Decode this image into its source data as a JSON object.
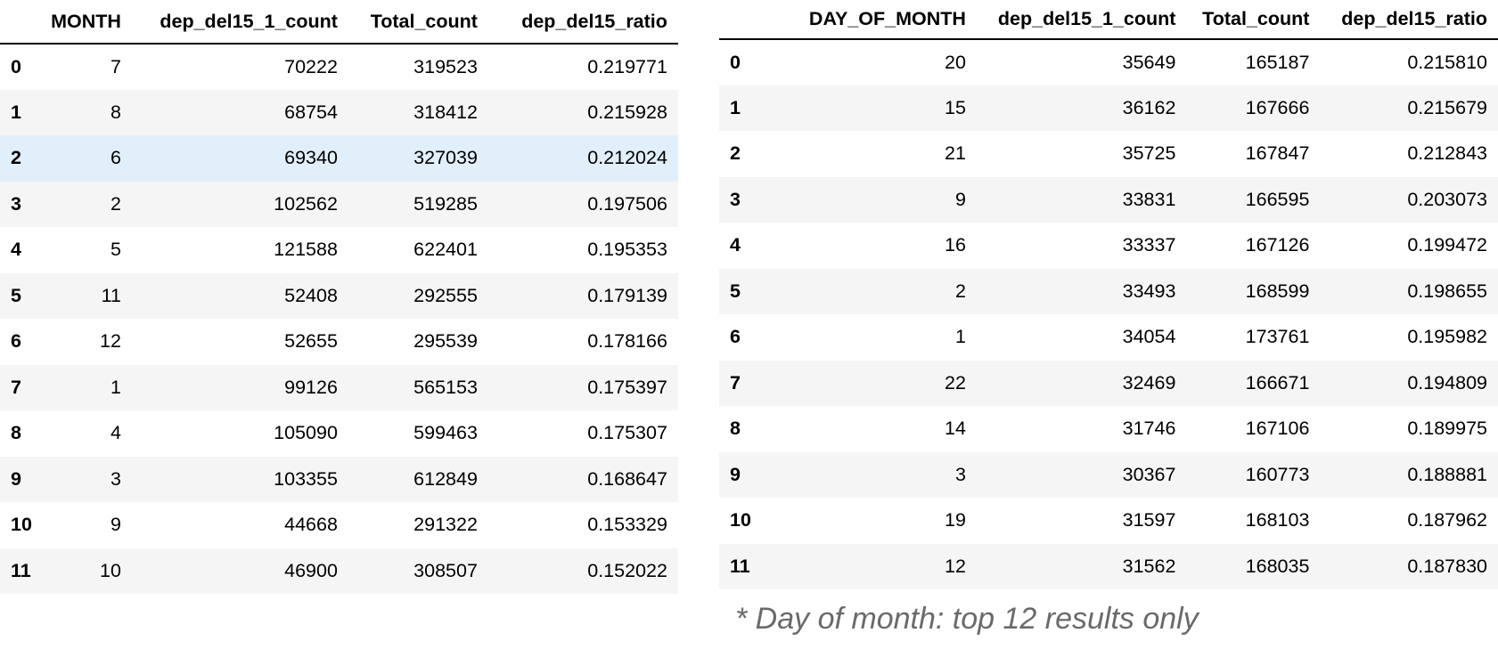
{
  "month_table": {
    "columns": [
      "",
      "MONTH",
      "dep_del15_1_count",
      "Total_count",
      "dep_del15_ratio"
    ],
    "highlighted_row": 2,
    "rows": [
      [
        "0",
        "7",
        "70222",
        "319523",
        "0.219771"
      ],
      [
        "1",
        "8",
        "68754",
        "318412",
        "0.215928"
      ],
      [
        "2",
        "6",
        "69340",
        "327039",
        "0.212024"
      ],
      [
        "3",
        "2",
        "102562",
        "519285",
        "0.197506"
      ],
      [
        "4",
        "5",
        "121588",
        "622401",
        "0.195353"
      ],
      [
        "5",
        "11",
        "52408",
        "292555",
        "0.179139"
      ],
      [
        "6",
        "12",
        "52655",
        "295539",
        "0.178166"
      ],
      [
        "7",
        "1",
        "99126",
        "565153",
        "0.175397"
      ],
      [
        "8",
        "4",
        "105090",
        "599463",
        "0.175307"
      ],
      [
        "9",
        "3",
        "103355",
        "612849",
        "0.168647"
      ],
      [
        "10",
        "9",
        "44668",
        "291322",
        "0.153329"
      ],
      [
        "11",
        "10",
        "46900",
        "308507",
        "0.152022"
      ]
    ]
  },
  "day_table": {
    "columns": [
      "",
      "DAY_OF_MONTH",
      "dep_del15_1_count",
      "Total_count",
      "dep_del15_ratio"
    ],
    "rows": [
      [
        "0",
        "20",
        "35649",
        "165187",
        "0.215810"
      ],
      [
        "1",
        "15",
        "36162",
        "167666",
        "0.215679"
      ],
      [
        "2",
        "21",
        "35725",
        "167847",
        "0.212843"
      ],
      [
        "3",
        "9",
        "33831",
        "166595",
        "0.203073"
      ],
      [
        "4",
        "16",
        "33337",
        "167126",
        "0.199472"
      ],
      [
        "5",
        "2",
        "33493",
        "168599",
        "0.198655"
      ],
      [
        "6",
        "1",
        "34054",
        "173761",
        "0.195982"
      ],
      [
        "7",
        "22",
        "32469",
        "166671",
        "0.194809"
      ],
      [
        "8",
        "14",
        "31746",
        "167106",
        "0.189975"
      ],
      [
        "9",
        "3",
        "30367",
        "160773",
        "0.188881"
      ],
      [
        "10",
        "19",
        "31597",
        "168103",
        "0.187962"
      ],
      [
        "11",
        "12",
        "31562",
        "168035",
        "0.187830"
      ]
    ]
  },
  "footnote": "* Day of month: top 12 results only",
  "colors": {
    "even_row": "#f5f5f5",
    "hover_row": "#e1effa",
    "header_rule": "#000000",
    "footnote": "#6a6a6a"
  }
}
